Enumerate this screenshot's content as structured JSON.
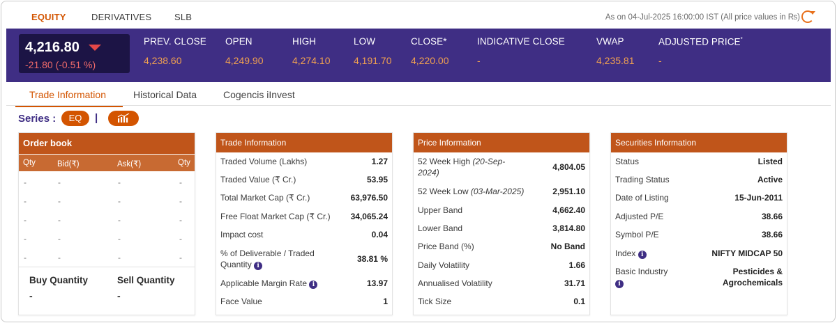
{
  "top_tabs": [
    "EQUITY",
    "DERIVATIVES",
    "SLB"
  ],
  "as_on": "As on 04-Jul-2025 16:00:00 IST (All price values in ₨)",
  "quote": {
    "price": "4,216.80",
    "change": "-21.80 (-0.51 %)"
  },
  "stats": [
    {
      "label": "PREV. CLOSE",
      "value": "4,238.60"
    },
    {
      "label": "OPEN",
      "value": "4,249.90"
    },
    {
      "label": "HIGH",
      "value": "4,274.10"
    },
    {
      "label": "LOW",
      "value": "4,191.70"
    },
    {
      "label": "CLOSE*",
      "value": "4,220.00"
    },
    {
      "label": "INDICATIVE CLOSE",
      "value": "-"
    },
    {
      "label": "VWAP",
      "value": "4,235.81"
    },
    {
      "label": "ADJUSTED PRICE",
      "sup": "*",
      "value": "-"
    }
  ],
  "sub_tabs": [
    "Trade Information",
    "Historical Data",
    "Cogencis iInvest"
  ],
  "series": {
    "label": "Series :",
    "value": "EQ",
    "separator": "|"
  },
  "order_book": {
    "title": "Order book",
    "columns": [
      "Qty",
      "Bid(₹)",
      "Ask(₹)",
      "Qty"
    ],
    "rows": [
      [
        "-",
        "-",
        "-",
        "-"
      ],
      [
        "-",
        "-",
        "-",
        "-"
      ],
      [
        "-",
        "-",
        "-",
        "-"
      ],
      [
        "-",
        "-",
        "-",
        "-"
      ],
      [
        "-",
        "-",
        "-",
        "-"
      ]
    ],
    "buy_label": "Buy Quantity",
    "buy_value": "-",
    "sell_label": "Sell Quantity",
    "sell_value": "-"
  },
  "trade_info": {
    "title": "Trade Information",
    "rows": [
      {
        "k": "Traded Volume (Lakhs)",
        "v": "1.27"
      },
      {
        "k": "Traded Value (₹ Cr.)",
        "v": "53.95"
      },
      {
        "k": "Total Market Cap (₹ Cr.)",
        "v": "63,976.50"
      },
      {
        "k": "Free Float Market Cap (₹ Cr.)",
        "v": "34,065.24"
      },
      {
        "k": "Impact cost",
        "v": "0.04"
      },
      {
        "k": "% of Deliverable / Traded Quantity",
        "v": "38.81 %",
        "info": true
      },
      {
        "k": "Applicable Margin Rate",
        "v": "13.97",
        "info": true
      },
      {
        "k": "Face Value",
        "v": "1"
      }
    ]
  },
  "price_info": {
    "title": "Price Information",
    "rows": [
      {
        "k": "52 Week High",
        "date": "(20-Sep-2024)",
        "v": "4,804.05"
      },
      {
        "k": "52 Week Low",
        "date": "(03-Mar-2025)",
        "v": "2,951.10"
      },
      {
        "k": "Upper Band",
        "v": "4,662.40"
      },
      {
        "k": "Lower Band",
        "v": "3,814.80"
      },
      {
        "k": "Price Band (%)",
        "v": "No Band"
      },
      {
        "k": "Daily Volatility",
        "v": "1.66"
      },
      {
        "k": "Annualised Volatility",
        "v": "31.71"
      },
      {
        "k": "Tick Size",
        "v": "0.1"
      }
    ]
  },
  "securities_info": {
    "title": "Securities Information",
    "rows": [
      {
        "k": "Status",
        "v": "Listed"
      },
      {
        "k": "Trading Status",
        "v": "Active"
      },
      {
        "k": "Date of Listing",
        "v": "15-Jun-2011"
      },
      {
        "k": "Adjusted P/E",
        "v": "38.66"
      },
      {
        "k": "Symbol P/E",
        "v": "38.66"
      },
      {
        "k": "Index",
        "v": "NIFTY MIDCAP 50",
        "info": true
      },
      {
        "k": "Basic Industry",
        "v": "Pesticides & Agrochemicals",
        "info": true
      }
    ]
  },
  "colors": {
    "accent": "#d35400",
    "band": "#3f2e84",
    "panel_header": "#c0551a",
    "negative": "#ef6a6a",
    "stat_value": "#f0a050"
  }
}
